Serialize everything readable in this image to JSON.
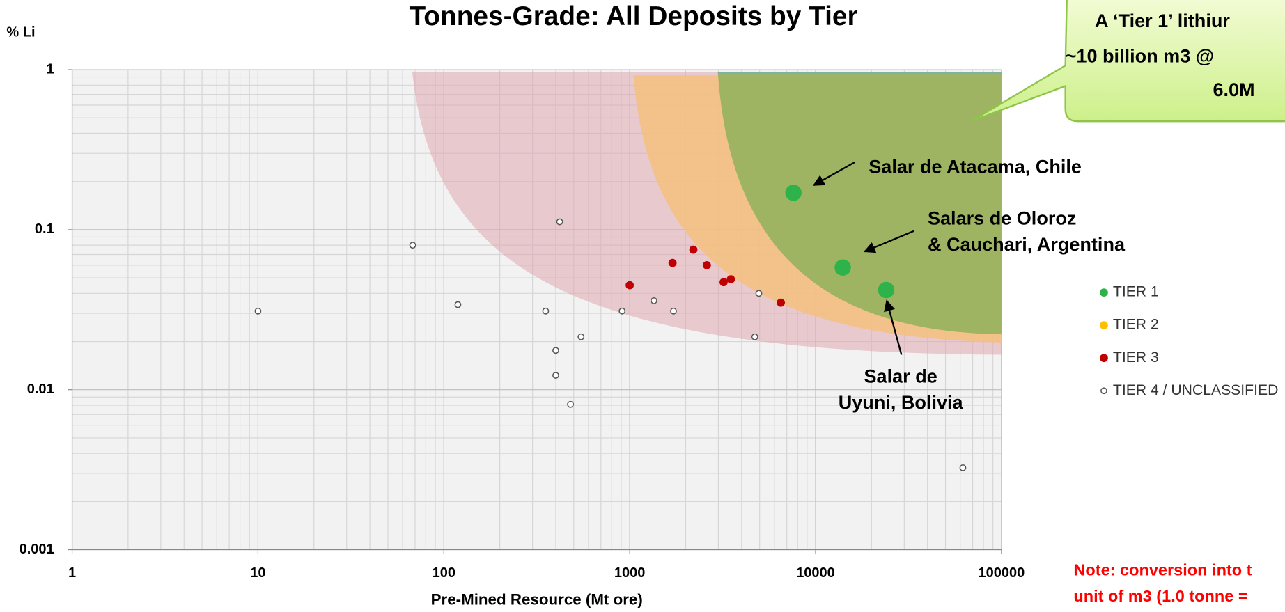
{
  "chart_data": {
    "type": "scatter",
    "title": "Tonnes-Grade: All Deposits by Tier",
    "x_label": "Pre-Mined Resource (Mt ore)",
    "y_label": "% Li",
    "xlog": true,
    "ylog": true,
    "grid": true,
    "legend": "right",
    "xlim": [
      1,
      100000
    ],
    "xticks": [
      1,
      10,
      100,
      1000,
      10000,
      100000
    ],
    "ylim": [
      0.001,
      1
    ],
    "yticks": [
      0.001,
      0.01,
      0.1,
      1
    ],
    "series": [
      {
        "name": "TIER 1",
        "color": "#2db34a",
        "x": [
          7600,
          14000,
          24000
        ],
        "values": [
          0.17,
          0.058,
          0.042
        ]
      },
      {
        "name": "TIER 2",
        "color": "#ffc000",
        "x": [],
        "values": []
      },
      {
        "name": "TIER 3",
        "color": "#c00000",
        "x": [
          1000,
          1700,
          2200,
          2600,
          3200,
          3500,
          6500
        ],
        "values": [
          0.045,
          0.062,
          0.075,
          0.06,
          0.047,
          0.049,
          0.035
        ]
      },
      {
        "name": "TIER 4 / UNCLASSIFIED",
        "color": "#555555",
        "x": [
          10,
          68,
          119,
          353,
          420,
          400,
          400,
          480,
          547,
          910,
          1350,
          1720,
          4710,
          4950,
          62000
        ],
        "values": [
          0.031,
          0.08,
          0.034,
          0.031,
          0.112,
          0.0176,
          0.0123,
          0.0081,
          0.0214,
          0.031,
          0.036,
          0.031,
          0.0214,
          0.04,
          0.00325
        ]
      }
    ],
    "annotations": [
      "Salar de Atacama, Chile",
      "Salars de Oloroz",
      "& Cauchari, Argentina",
      "Salar de",
      "Uyuni, Bolivia"
    ],
    "callout": [
      "A ‘Tier 1’ lithiur",
      "~10 billion m3 @",
      "6.0M"
    ],
    "note": [
      "Note: conversion into t",
      "unit of m3 (1.0 tonne ="
    ]
  }
}
